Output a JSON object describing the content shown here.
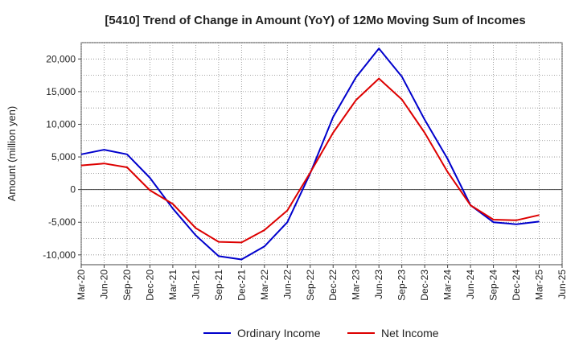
{
  "chart_data": {
    "type": "line",
    "title": "[5410]  Trend of Change in Amount (YoY) of 12Mo Moving Sum of Incomes",
    "xlabel": "",
    "ylabel": "Amount (million yen)",
    "categories": [
      "Mar-20",
      "Jun-20",
      "Sep-20",
      "Dec-20",
      "Mar-21",
      "Jun-21",
      "Sep-21",
      "Dec-21",
      "Mar-22",
      "Jun-22",
      "Sep-22",
      "Dec-22",
      "Mar-23",
      "Jun-23",
      "Sep-23",
      "Dec-23",
      "Mar-24",
      "Jun-24",
      "Sep-24",
      "Dec-24",
      "Mar-25",
      "Jun-25"
    ],
    "ylim": [
      -11500,
      22500
    ],
    "yticks": [
      -10000,
      -5000,
      0,
      5000,
      10000,
      15000,
      20000
    ],
    "ytick_labels": [
      "-10,000",
      "-5,000",
      "0",
      "5,000",
      "10,000",
      "15,000",
      "20,000"
    ],
    "grid": true,
    "legend_position": "bottom-center",
    "series": [
      {
        "name": "Ordinary Income",
        "color": "#0000cc",
        "values": [
          5400,
          6100,
          5400,
          1800,
          -2900,
          -7000,
          -10200,
          -10700,
          -8700,
          -5000,
          2500,
          11100,
          17200,
          21600,
          17300,
          10700,
          4700,
          -2400,
          -5000,
          -5300,
          -4900,
          null
        ]
      },
      {
        "name": "Net Income",
        "color": "#dd0000",
        "values": [
          3700,
          4000,
          3400,
          -100,
          -2200,
          -5900,
          -8000,
          -8100,
          -6200,
          -3200,
          2600,
          8700,
          13700,
          17000,
          13800,
          8700,
          2700,
          -2400,
          -4600,
          -4700,
          -3900,
          null
        ]
      }
    ]
  }
}
